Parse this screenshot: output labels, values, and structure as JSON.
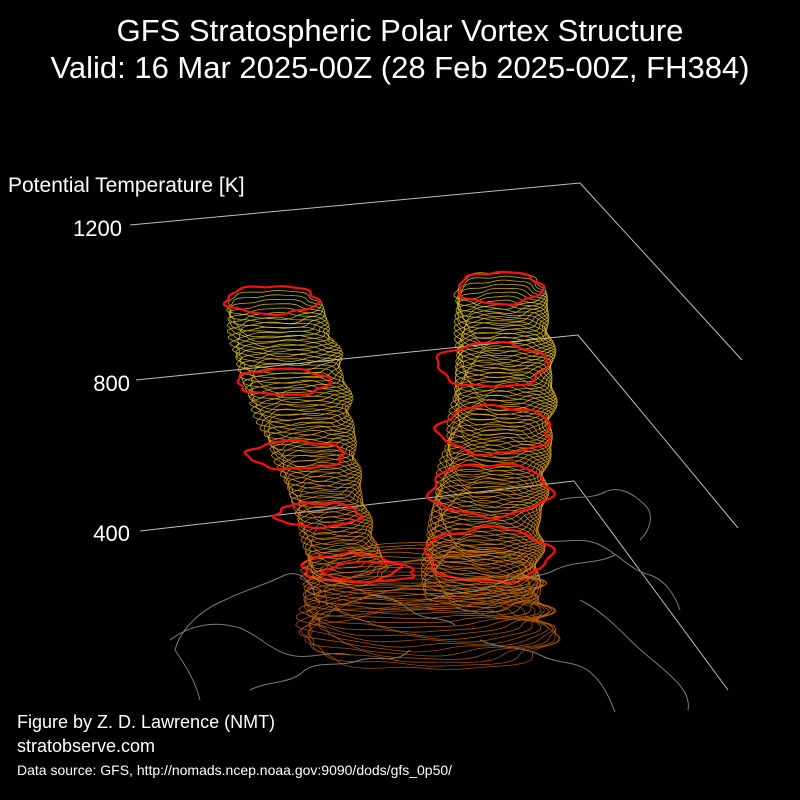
{
  "header": {
    "title_line1": "GFS Stratospheric Polar Vortex Structure",
    "title_line2": "Valid: 16 Mar 2025-00Z  (28 Feb 2025-00Z, FH384)"
  },
  "footer": {
    "credit": "Figure by Z. D. Lawrence (NMT)",
    "website": "stratobserve.com",
    "source": "Data source: GFS, http://nomads.ncep.noaa.gov:9090/dods/gfs_0p50/"
  },
  "colors": {
    "background": "#000000",
    "outline": "#ff1010",
    "high_levels": "#e8d020",
    "low_levels": "#e08010",
    "coastlines": "#808080",
    "axes": "#bfbfbf"
  },
  "chart_data": {
    "type": "3d-surface",
    "zlabel": "Potential Temperature [K]",
    "z_ticks": [
      1200,
      800,
      400
    ],
    "z_tick_labels": [
      "1200",
      "800",
      "400"
    ],
    "grid": true,
    "lobes": [
      "left lobe",
      "right lobe"
    ]
  }
}
